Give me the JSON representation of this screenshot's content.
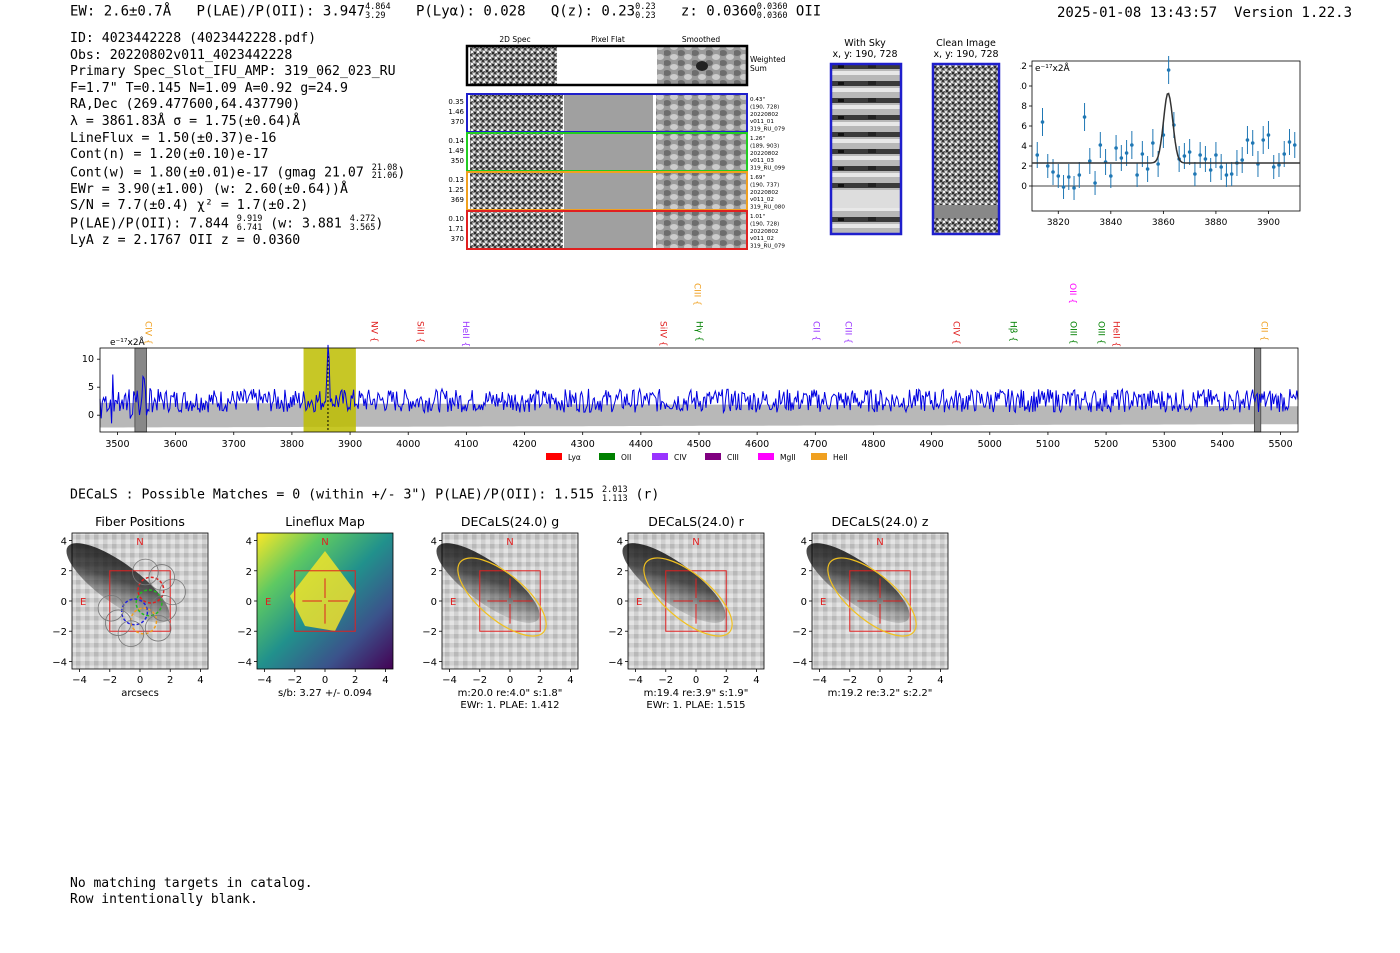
{
  "header": {
    "ew": "EW: 2.6±0.7Å",
    "plae_label": "P(LAE)/P(OII):",
    "plae_val": "3.947",
    "plae_hi": "4.864",
    "plae_lo": "3.29",
    "plya": "P(Lyα): 0.028",
    "qz_label": "Q(z): 0.23",
    "qz_hi": "0.23",
    "qz_lo": "0.23",
    "z_label": "z: 0.0360",
    "z_hi": "0.0360",
    "z_lo": "0.0360",
    "z_line": "OII",
    "datetime": "2025-01-08 13:43:57",
    "version": "Version 1.22.3"
  },
  "info": {
    "id": "ID: 4023442228 (4023442228.pdf)",
    "obs": "Obs: 20220802v011_4023442228",
    "spec": "Primary Spec_Slot_IFU_AMP: 319_062_023_RU",
    "params": "F=1.7\"  T=0.145  N=1.09  A=0.92  g=24.9",
    "radec": "RA,Dec (269.477600,64.437790)",
    "lambda": "λ = 3861.83Å  σ = 1.75(±0.64)Å",
    "lineflux": "LineFlux = 1.50(±0.37)e-16",
    "contn": "Cont(n) = 1.20(±0.10)e-17",
    "contw": "Cont(w) = 1.80(±0.01)e-17 (gmag 21.07",
    "contw_hi": "21.08",
    "contw_lo": "21.06",
    "contw_end": ")",
    "ewr": "EWr = 3.90(±1.00) (w: 2.60(±0.64))Å",
    "sn": "S/N = 7.7(±0.4)  χ² = 1.7(±0.2)",
    "plae": "P(LAE)/P(OII): 7.844",
    "plae_hi": "9.919",
    "plae_lo": "6.741",
    "plae_w": "(w: 3.881",
    "plae_w_hi": "4.272",
    "plae_w_lo": "3.565",
    "plae_w_end": ")",
    "lyaz": "LyA z = 2.1767  OII z = 0.0360"
  },
  "cutouts": {
    "headers": [
      "2D Spec",
      "Pixel Flat",
      "Smoothed"
    ],
    "weighted_sum": [
      "Weighted",
      "Sum"
    ],
    "rows": [
      {
        "left": [
          "0.35",
          "1.46",
          "370"
        ],
        "right": [
          "0.43\"",
          "(190, 728)",
          "20220802",
          "v011_01",
          "319_RU_079"
        ],
        "color": "#1f1fcc"
      },
      {
        "left": [
          "0.14",
          "1.49",
          "350"
        ],
        "right": [
          "1.26\"",
          "(189, 903)",
          "20220802",
          "v011_03",
          "319_RU_099"
        ],
        "color": "#22cc22"
      },
      {
        "left": [
          "0.13",
          "1.25",
          "369"
        ],
        "right": [
          "1.69\"",
          "(190, 737)",
          "20220802",
          "v011_02",
          "319_RU_080"
        ],
        "color": "#f0a020"
      },
      {
        "left": [
          "0.10",
          "1.71",
          "370"
        ],
        "right": [
          "1.01\"",
          "(190, 728)",
          "20220802",
          "v011_02",
          "319_RU_079"
        ],
        "color": "#e02020"
      }
    ]
  },
  "sky": {
    "with_sky": [
      "With Sky",
      "x, y: 190, 728"
    ],
    "clean": [
      "Clean Image",
      "x, y: 190, 728"
    ]
  },
  "colors": {
    "blue_frame": "#1f1fcc",
    "spectrum_line": "#0000e0",
    "zoom_points": "#1f77b4",
    "highlight": "#bdbd00",
    "red_box": "#e02020"
  },
  "chart_data": [
    {
      "type": "scatter",
      "name": "zoom-spectrum",
      "unit_label": "e⁻¹⁷x2Å",
      "xlim": [
        3810,
        3912
      ],
      "ylim": [
        -2.5,
        12.5
      ],
      "xticks": [
        3820,
        3840,
        3860,
        3880,
        3900
      ],
      "yticks": [
        0,
        2,
        4,
        6,
        8,
        10,
        12
      ],
      "fit": {
        "center": 3861.8,
        "sigma": 1.75,
        "amp": 7.0,
        "cont": 2.3
      },
      "x": [
        3812,
        3814,
        3816,
        3818,
        3820,
        3822,
        3824,
        3826,
        3828,
        3830,
        3832,
        3834,
        3836,
        3838,
        3840,
        3842,
        3844,
        3846,
        3848,
        3850,
        3852,
        3854,
        3856,
        3858,
        3860,
        3862,
        3864,
        3866,
        3868,
        3870,
        3872,
        3874,
        3876,
        3878,
        3880,
        3882,
        3884,
        3886,
        3888,
        3890,
        3892,
        3894,
        3896,
        3898,
        3900,
        3902,
        3904,
        3906,
        3908,
        3910
      ],
      "y": [
        3.1,
        6.4,
        2.0,
        1.4,
        1.0,
        -0.1,
        0.9,
        -0.2,
        1.1,
        6.9,
        2.5,
        0.3,
        4.1,
        2.4,
        1.0,
        3.8,
        2.8,
        3.3,
        4.1,
        1.1,
        3.2,
        1.7,
        4.3,
        2.2,
        5.1,
        11.6,
        6.1,
        2.7,
        3.0,
        3.4,
        1.2,
        3.1,
        2.7,
        1.6,
        3.1,
        1.9,
        1.1,
        1.2,
        2.3,
        2.6,
        4.6,
        4.3,
        2.2,
        4.6,
        5.1,
        1.9,
        2.1,
        3.2,
        4.4,
        4.1
      ],
      "err": [
        1.3,
        1.4,
        1.2,
        1.3,
        1.2,
        1.2,
        1.3,
        1.2,
        1.3,
        1.4,
        1.3,
        1.2,
        1.3,
        1.3,
        1.2,
        1.3,
        1.3,
        1.3,
        1.4,
        1.2,
        1.3,
        1.3,
        1.4,
        1.3,
        1.3,
        1.4,
        1.3,
        1.3,
        1.3,
        1.3,
        1.2,
        1.3,
        1.3,
        1.2,
        1.3,
        1.3,
        1.2,
        1.2,
        1.3,
        1.3,
        1.4,
        1.3,
        1.3,
        1.4,
        1.4,
        1.2,
        1.2,
        1.3,
        1.3,
        1.3
      ]
    },
    {
      "type": "line",
      "name": "full-spectrum",
      "unit_label": "e⁻¹⁷x2Å",
      "xlim": [
        3470,
        5530
      ],
      "ylim": [
        -3,
        12
      ],
      "xticks": [
        3500,
        3600,
        3700,
        3800,
        3900,
        4000,
        4100,
        4200,
        4300,
        4400,
        4500,
        4600,
        4700,
        4800,
        4900,
        5000,
        5100,
        5200,
        5300,
        5400,
        5500
      ],
      "yticks": [
        0,
        5,
        10
      ],
      "highlight_band": [
        3820,
        3910
      ],
      "detection_wave": 3862,
      "masked_bands": [
        [
          3530,
          3550
        ],
        [
          5455,
          5466
        ]
      ],
      "line_labels": [
        {
          "label": "CIV",
          "wave": 3548,
          "color": "#f0a020",
          "tier": 1
        },
        {
          "label": "NV",
          "wave": 3937,
          "color": "#e02020",
          "tier": 1
        },
        {
          "label": "SiII",
          "wave": 4016,
          "color": "#e02020",
          "tier": 1
        },
        {
          "label": "HeII",
          "wave": 4094,
          "color": "#9933ff",
          "tier": 1
        },
        {
          "label": "SiIV",
          "wave": 4434,
          "color": "#e02020",
          "tier": 1
        },
        {
          "label": "CIII",
          "wave": 4492,
          "color": "#f0a020",
          "tier": 0
        },
        {
          "label": "Hγ",
          "wave": 4496,
          "color": "#008000",
          "tier": 1
        },
        {
          "label": "CII",
          "wave": 4697,
          "color": "#9933ff",
          "tier": 1
        },
        {
          "label": "CIII",
          "wave": 4752,
          "color": "#9933ff",
          "tier": 1
        },
        {
          "label": "CIV",
          "wave": 4938,
          "color": "#e02020",
          "tier": 1
        },
        {
          "label": "Hβ",
          "wave": 5036,
          "color": "#008000",
          "tier": 1
        },
        {
          "label": "OII",
          "wave": 5138,
          "color": "#ff00ff",
          "tier": 0
        },
        {
          "label": "OIII",
          "wave": 5139,
          "color": "#008000",
          "tier": 1
        },
        {
          "label": "OIII",
          "wave": 5187,
          "color": "#008000",
          "tier": 1
        },
        {
          "label": "HeII",
          "wave": 5213,
          "color": "#e02020",
          "tier": 1
        },
        {
          "label": "CII",
          "wave": 5467,
          "color": "#f0a020",
          "tier": 1
        }
      ],
      "legend": [
        {
          "label": "Lyα",
          "color": "#ff0000"
        },
        {
          "label": "OII",
          "color": "#008000"
        },
        {
          "label": "CIV",
          "color": "#9933ff"
        },
        {
          "label": "CIII",
          "color": "#800080"
        },
        {
          "label": "MgII",
          "color": "#ff00ff"
        },
        {
          "label": "HeII",
          "color": "#f0a020"
        }
      ]
    }
  ],
  "decals": {
    "summary": "DECaLS : Possible Matches = 0 (within +/- 3\")  P(LAE)/P(OII): 1.515",
    "summary_hi": "2.013",
    "summary_lo": "1.113",
    "summary_end": "(r)",
    "panels": [
      {
        "title": "Fiber Positions",
        "type": "fibers",
        "caption1": "arcsecs",
        "caption2": ""
      },
      {
        "title": "Lineflux Map",
        "type": "lineflux",
        "caption1": "s/b: 3.27 +/- 0.094",
        "caption2": ""
      },
      {
        "title": "DECaLS(24.0) g",
        "type": "band",
        "caption1": "m:20.0  re:4.0\"  s:1.8\"",
        "caption2": "EWr: 1. PLAE: 1.412"
      },
      {
        "title": "DECaLS(24.0) r",
        "type": "band",
        "caption1": "m:19.4  re:3.9\"  s:1.9\"",
        "caption2": "EWr: 1. PLAE: 1.515"
      },
      {
        "title": "DECaLS(24.0) z",
        "type": "band",
        "caption1": "m:19.2  re:3.2\"  s:2.2\"",
        "caption2": ""
      }
    ],
    "axis_ticks_x": [
      -4,
      -2,
      0,
      2,
      4
    ],
    "axis_ticks_y": [
      4,
      2,
      0,
      -2,
      -4
    ],
    "north": "N",
    "east": "E"
  },
  "footer": {
    "line1": "No matching targets in catalog.",
    "line2": "Row intentionally blank."
  }
}
